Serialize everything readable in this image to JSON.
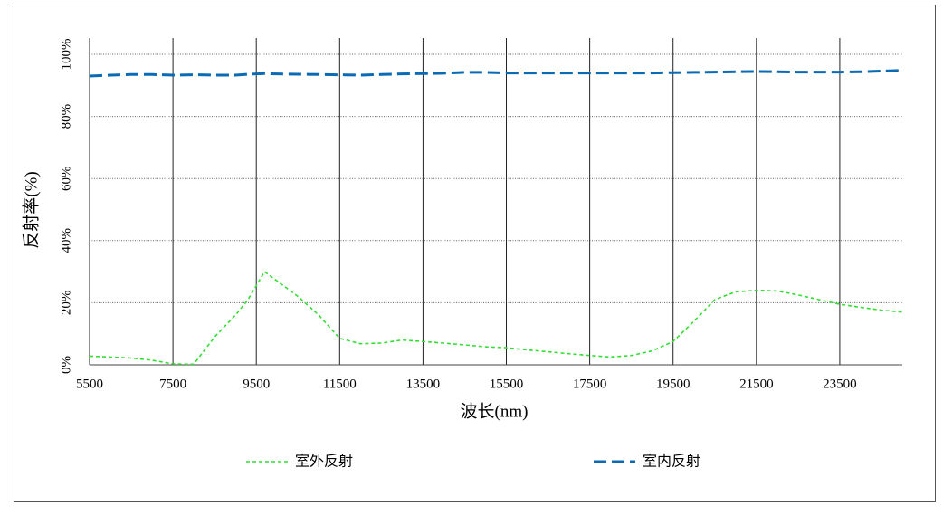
{
  "chart_data": {
    "type": "line",
    "y_label": "反射率(%)",
    "x_label": "波长(nm)",
    "x": [
      5500,
      6000,
      6500,
      7000,
      7500,
      8000,
      8500,
      9000,
      9300,
      9700,
      10000,
      10500,
      11000,
      11500,
      12000,
      12500,
      13000,
      13500,
      14000,
      14500,
      15000,
      15500,
      16000,
      16500,
      17000,
      17500,
      18000,
      18500,
      19000,
      19500,
      20000,
      20500,
      21000,
      21500,
      22000,
      22500,
      23000,
      23500,
      24000,
      24500,
      25000
    ],
    "series": [
      {
        "name": "室外反射",
        "color": "#33dd33",
        "dash": "4,3",
        "values": [
          2.8,
          2.5,
          2.2,
          1.5,
          0.3,
          0.2,
          9,
          16,
          21,
          30,
          27,
          22,
          16,
          8.5,
          6.8,
          7,
          8,
          7.5,
          7,
          6.4,
          5.8,
          5.5,
          4.8,
          4.2,
          3.6,
          3,
          2.5,
          3,
          4.5,
          7.5,
          14,
          21,
          23.5,
          24,
          23.8,
          22.5,
          21,
          19.5,
          18.5,
          17.6,
          17
        ]
      },
      {
        "name": "室内反射",
        "color": "#0a6ab4",
        "dash": "14,6",
        "values": [
          93,
          93.3,
          93.5,
          93.5,
          93.3,
          93.4,
          93.3,
          93.3,
          93.6,
          93.8,
          93.7,
          93.6,
          93.5,
          93.4,
          93.3,
          93.5,
          93.7,
          93.8,
          93.9,
          94.2,
          94.2,
          94,
          94,
          94,
          94,
          94,
          94,
          94,
          94,
          94.1,
          94.2,
          94.3,
          94.4,
          94.5,
          94.4,
          94.3,
          94.3,
          94.3,
          94.4,
          94.6,
          94.8
        ]
      }
    ],
    "xlim": [
      5500,
      25000
    ],
    "xticks": [
      5500,
      7500,
      9500,
      11500,
      13500,
      15500,
      17500,
      19500,
      21500,
      23500
    ],
    "ylim": [
      0,
      100
    ],
    "yticks": [
      {
        "value": 0,
        "label": "0%"
      },
      {
        "value": 20,
        "label": "20%"
      },
      {
        "value": 40,
        "label": "40%"
      },
      {
        "value": 60,
        "label": "60%"
      },
      {
        "value": 80,
        "label": "80%"
      },
      {
        "value": 100,
        "label": "100%"
      }
    ],
    "grid": true
  }
}
